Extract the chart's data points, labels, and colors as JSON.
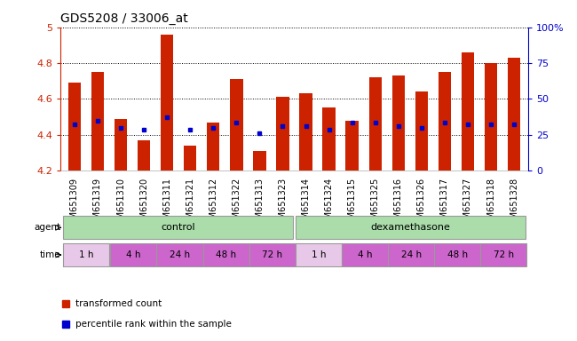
{
  "title": "GDS5208 / 33006_at",
  "samples": [
    "GSM651309",
    "GSM651319",
    "GSM651310",
    "GSM651320",
    "GSM651311",
    "GSM651321",
    "GSM651312",
    "GSM651322",
    "GSM651313",
    "GSM651323",
    "GSM651314",
    "GSM651324",
    "GSM651315",
    "GSM651325",
    "GSM651316",
    "GSM651326",
    "GSM651317",
    "GSM651327",
    "GSM651318",
    "GSM651328"
  ],
  "bar_tops": [
    4.69,
    4.75,
    4.49,
    4.37,
    4.96,
    4.34,
    4.47,
    4.71,
    4.31,
    4.61,
    4.63,
    4.55,
    4.48,
    4.72,
    4.73,
    4.64,
    4.75,
    4.86,
    4.8,
    4.83
  ],
  "bar_base": 4.2,
  "blue_dots_y": [
    4.46,
    4.48,
    4.44,
    4.43,
    4.5,
    4.43,
    4.44,
    4.47,
    4.41,
    4.45,
    4.45,
    4.43,
    4.47,
    4.47,
    4.45,
    4.44,
    4.47,
    4.46,
    4.46,
    4.46
  ],
  "ylim": [
    4.2,
    5.0
  ],
  "yticks_left": [
    4.2,
    4.4,
    4.6,
    4.8,
    5.0
  ],
  "ytick_labels_left": [
    "4.2",
    "4.4",
    "4.6",
    "4.8",
    "5"
  ],
  "yticks_right": [
    0,
    25,
    50,
    75,
    100
  ],
  "ytick_labels_right": [
    "0",
    "25",
    "50",
    "75",
    "100%"
  ],
  "bar_color": "#cc2200",
  "dot_color": "#0000cc",
  "agent_color": "#aaddaa",
  "time_1h_color": "#e8c8e8",
  "time_other_color": "#cc66cc",
  "bg_color": "#ffffff",
  "title_fontsize": 10,
  "tick_fontsize": 7,
  "legend_label1": "transformed count",
  "legend_label2": "percentile rank within the sample"
}
